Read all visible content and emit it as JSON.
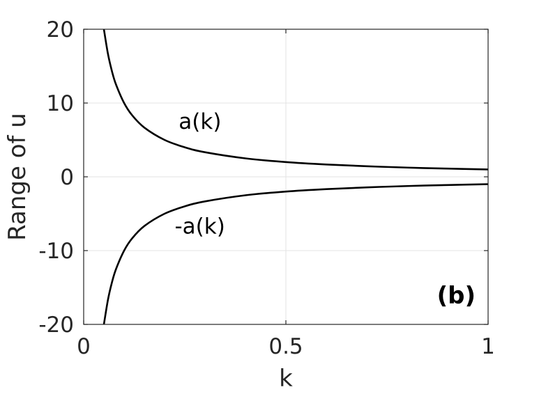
{
  "chart_data": {
    "type": "line",
    "xlabel": "k",
    "ylabel": "Range of u",
    "xlim": [
      0,
      1
    ],
    "ylim": [
      -20,
      20
    ],
    "xticks": [
      0,
      0.5,
      1
    ],
    "xtick_labels": [
      "0",
      "0.5",
      "1"
    ],
    "yticks": [
      -20,
      -10,
      0,
      10,
      20
    ],
    "ytick_labels": [
      "-20",
      "-10",
      "0",
      "10",
      "20"
    ],
    "grid": true,
    "panel_label": "(b)",
    "series": [
      {
        "name": "a(k)",
        "x": [
          0.05,
          0.06,
          0.07,
          0.08,
          0.1,
          0.12,
          0.15,
          0.2,
          0.25,
          0.3,
          0.4,
          0.5,
          0.6,
          0.7,
          0.8,
          0.9,
          1.0
        ],
        "y": [
          20,
          16.67,
          14.29,
          12.5,
          10,
          8.33,
          6.67,
          5,
          4,
          3.33,
          2.5,
          2,
          1.67,
          1.43,
          1.25,
          1.11,
          1
        ]
      },
      {
        "name": "-a(k)",
        "x": [
          0.05,
          0.06,
          0.07,
          0.08,
          0.1,
          0.12,
          0.15,
          0.2,
          0.25,
          0.3,
          0.4,
          0.5,
          0.6,
          0.7,
          0.8,
          0.9,
          1.0
        ],
        "y": [
          -20,
          -16.67,
          -14.29,
          -12.5,
          -10,
          -8.33,
          -6.67,
          -5,
          -4,
          -3.33,
          -2.5,
          -2,
          -1.67,
          -1.43,
          -1.25,
          -1.11,
          -1
        ]
      }
    ],
    "annotations": [
      {
        "text": "a(k)",
        "x": 0.235,
        "y": 6.5
      },
      {
        "text": "-a(k)",
        "x": 0.225,
        "y": -7.7
      }
    ],
    "colors": {
      "line": "#000000",
      "grid": "#e3e3e3",
      "axis": "#262626"
    }
  }
}
